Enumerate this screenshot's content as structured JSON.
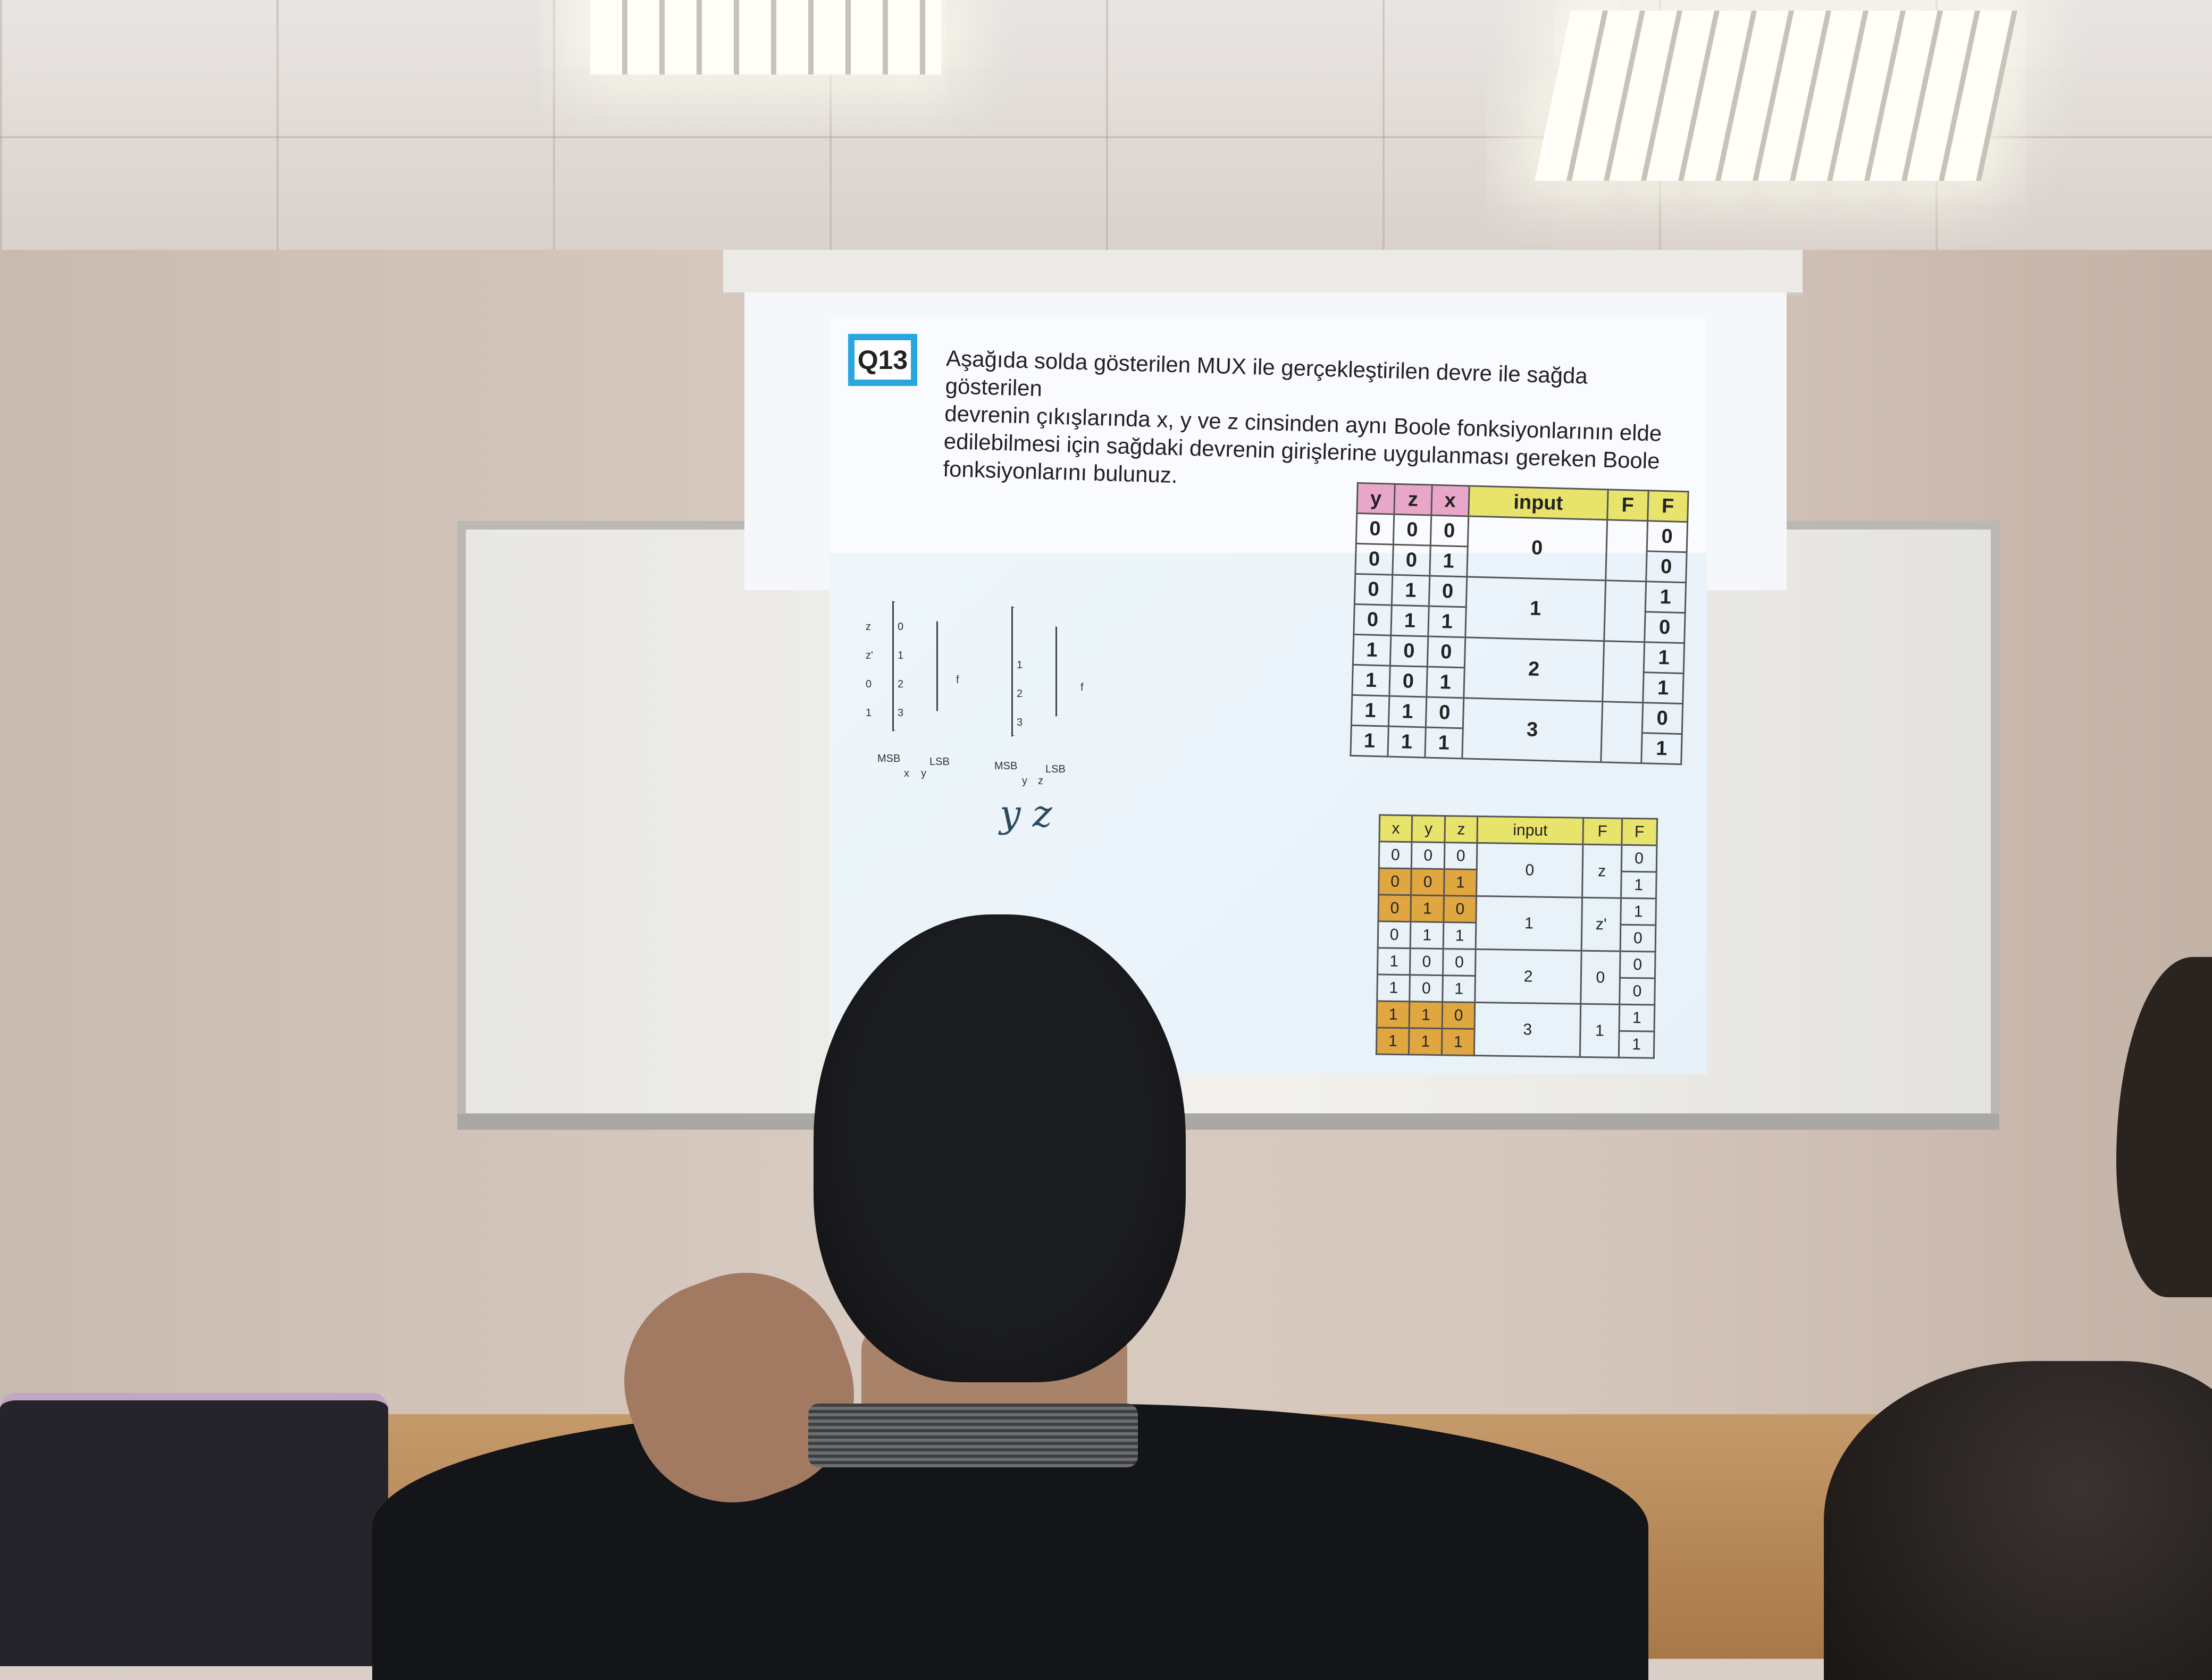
{
  "slide": {
    "badge": "Q13",
    "question_lines": [
      "Aşağıda solda gösterilen MUX ile gerçekleştirilen devre ile sağda gösterilen",
      "devrenin çıkışlarında x, y ve z cinsinden aynı Boole fonksiyonlarının elde",
      "edilebilmesi için sağdaki devrenin girişlerine uygulanması  gereken Boole",
      "fonksiyonlarını bulunuz."
    ]
  },
  "mux_left": {
    "inputs": [
      "z",
      "z'",
      "0",
      "1"
    ],
    "pins": [
      "0",
      "1",
      "2",
      "3"
    ],
    "output": "f",
    "msb": "MSB",
    "lsb": "LSB",
    "sel": [
      "x",
      "y"
    ]
  },
  "mux_right": {
    "pins": [
      "1",
      "2",
      "3"
    ],
    "output": "f",
    "msb": "MSB",
    "lsb": "LSB",
    "sel": [
      "y",
      "z"
    ],
    "handwriting": "y z"
  },
  "table_top": {
    "headers": [
      "y",
      "z",
      "x",
      "input",
      "F",
      "F"
    ],
    "rows": [
      [
        "0",
        "0",
        "0",
        "0",
        "",
        "0"
      ],
      [
        "0",
        "0",
        "1",
        "",
        "",
        "0"
      ],
      [
        "0",
        "1",
        "0",
        "1",
        "",
        "1"
      ],
      [
        "0",
        "1",
        "1",
        "",
        "",
        "0"
      ],
      [
        "1",
        "0",
        "0",
        "2",
        "",
        "1"
      ],
      [
        "1",
        "0",
        "1",
        "",
        "",
        "1"
      ],
      [
        "1",
        "1",
        "0",
        "3",
        "",
        "0"
      ],
      [
        "1",
        "1",
        "1",
        "",
        "",
        "1"
      ]
    ]
  },
  "table_bottom": {
    "headers": [
      "x",
      "y",
      "z",
      "input",
      "F",
      "F"
    ],
    "rows": [
      [
        "0",
        "0",
        "0",
        "0",
        "z",
        "0"
      ],
      [
        "0",
        "0",
        "1",
        "",
        "",
        "1"
      ],
      [
        "0",
        "1",
        "0",
        "1",
        "z'",
        "1"
      ],
      [
        "0",
        "1",
        "1",
        "",
        "",
        "0"
      ],
      [
        "1",
        "0",
        "0",
        "2",
        "0",
        "0"
      ],
      [
        "1",
        "0",
        "1",
        "",
        "",
        "0"
      ],
      [
        "1",
        "1",
        "0",
        "3",
        "1",
        "1"
      ],
      [
        "1",
        "1",
        "1",
        "",
        "",
        "1"
      ]
    ],
    "highlight_rows": [
      1,
      2,
      6,
      7
    ]
  },
  "colors": {
    "badge_border": "#29a6e0",
    "header_pink": "#e8a7c9",
    "header_yellow": "#e7e36b",
    "row_highlight": "#e0a640"
  }
}
